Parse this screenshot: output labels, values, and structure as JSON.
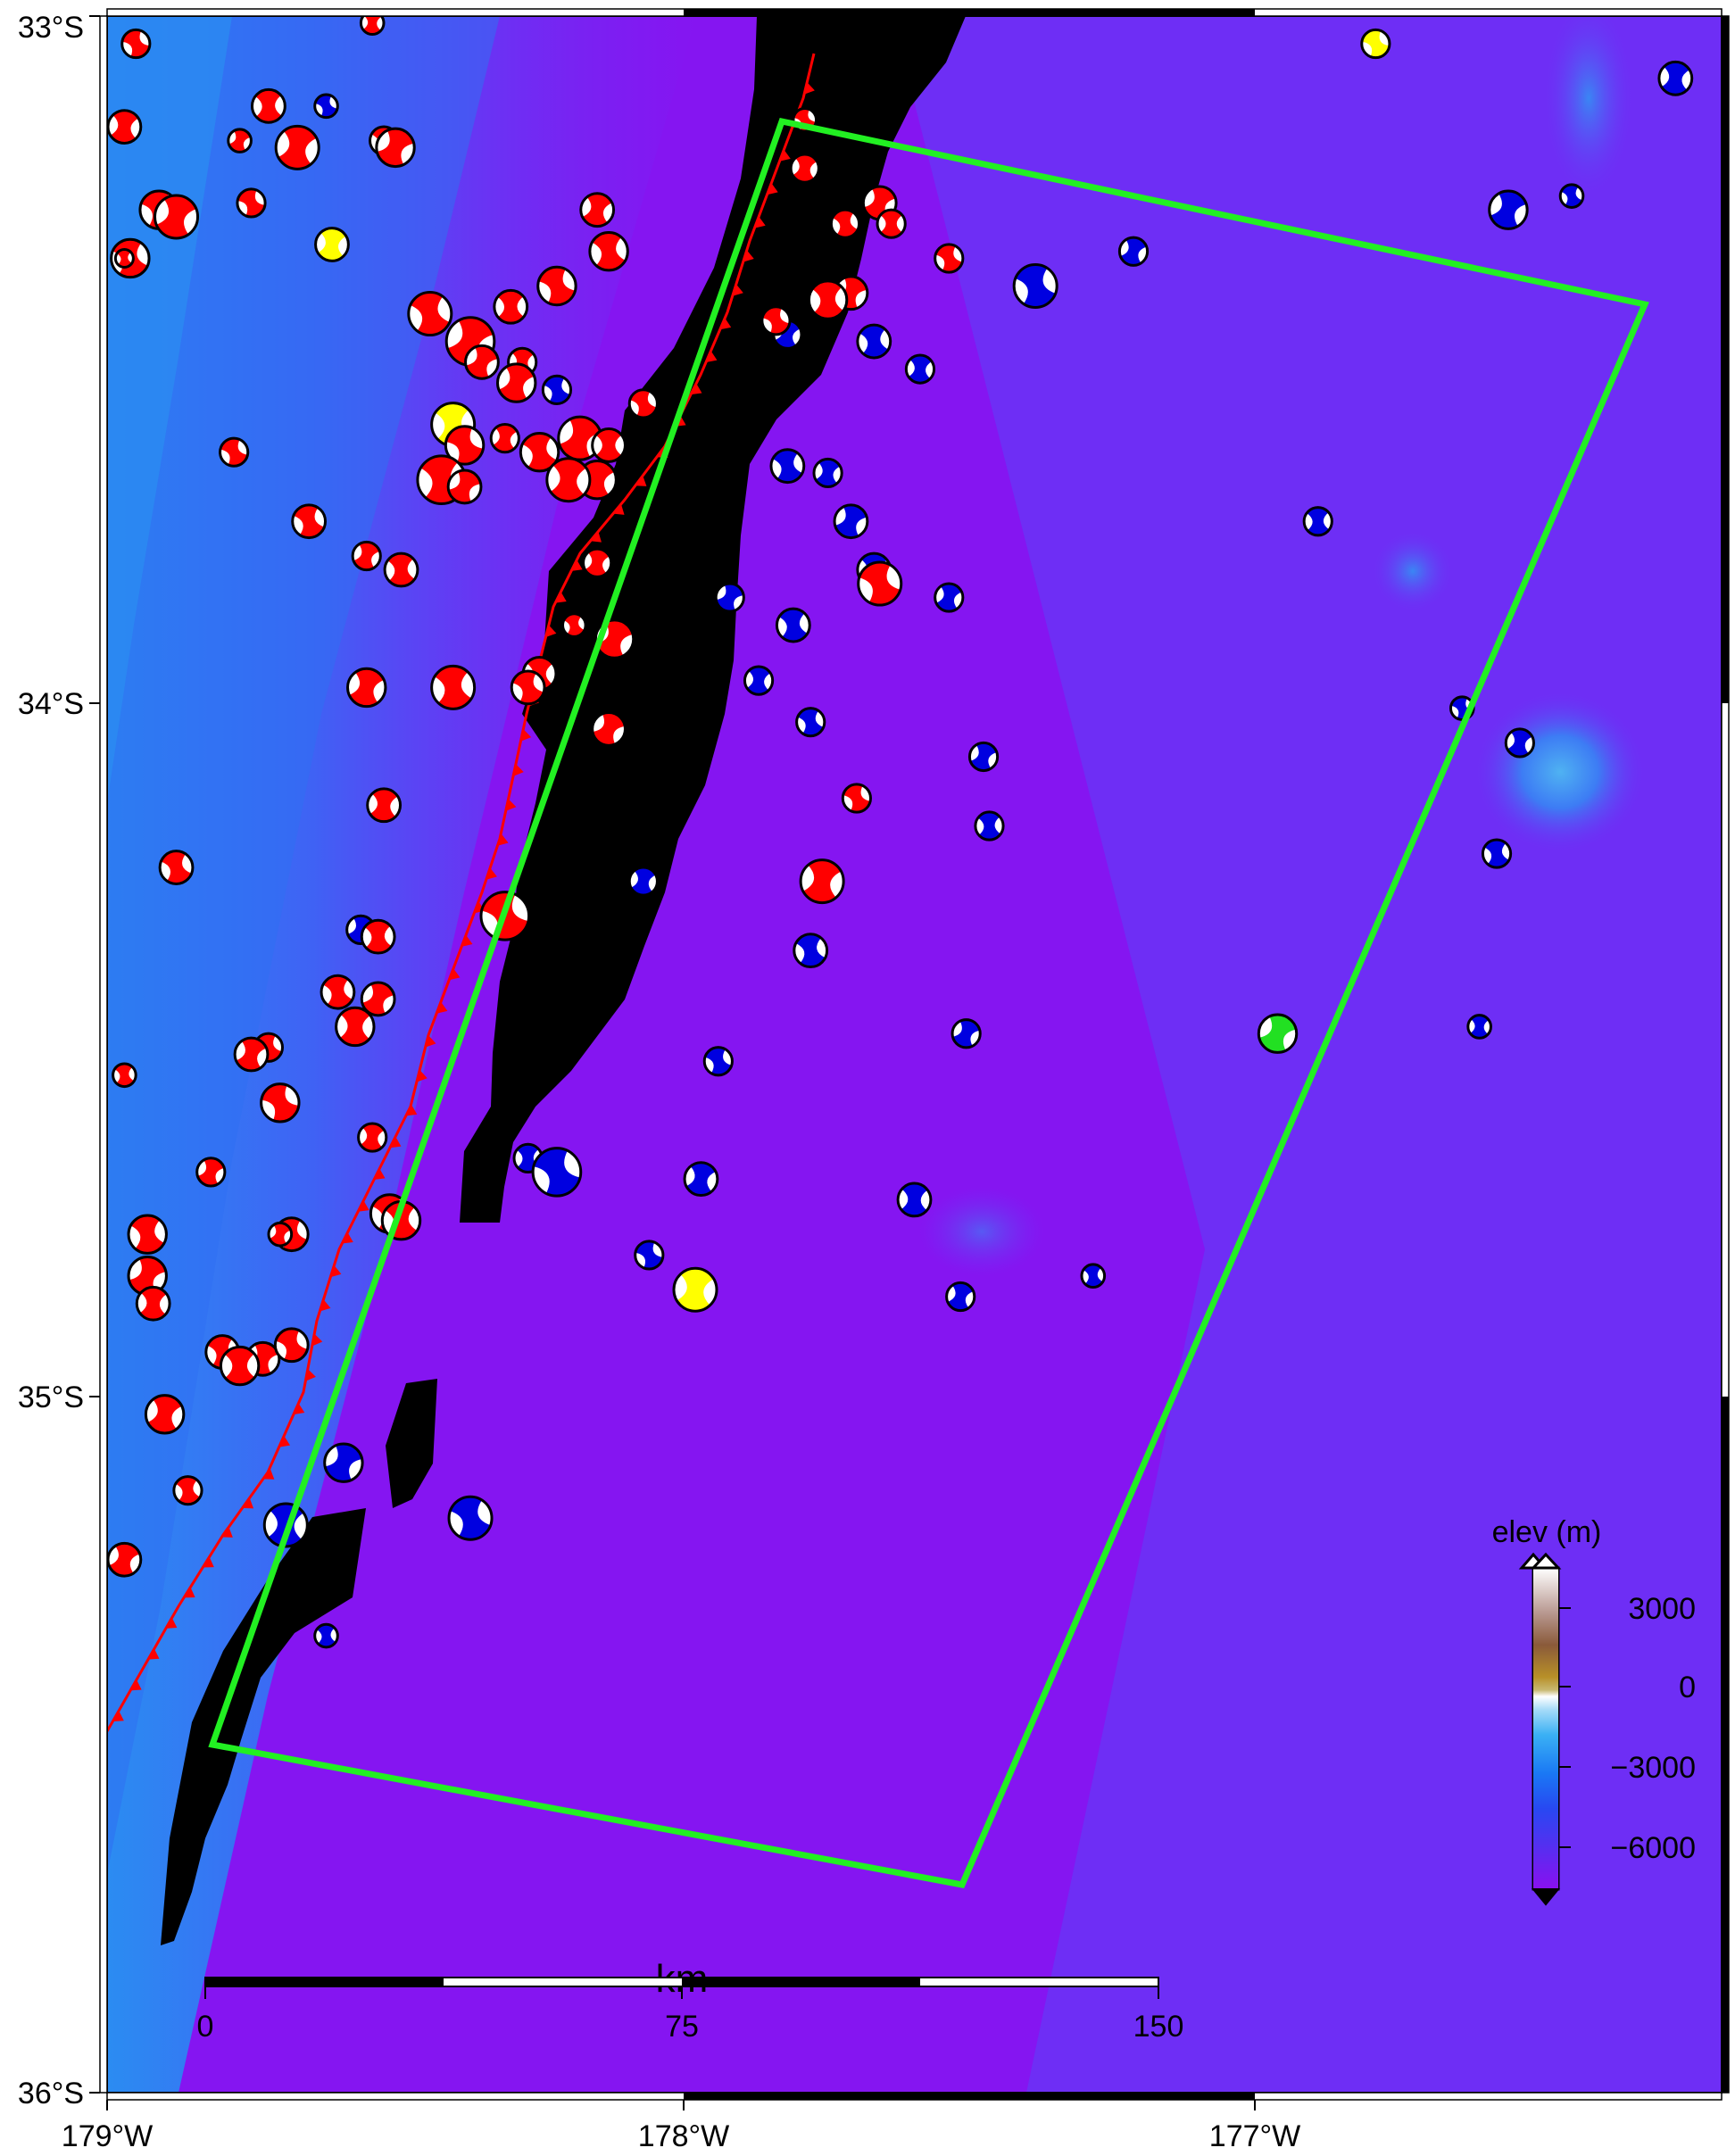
{
  "map": {
    "lat_labels": [
      "33°S",
      "34°S",
      "35°S",
      "36°S"
    ],
    "lon_labels": [
      "179°W",
      "178°W",
      "177°W"
    ],
    "colors": {
      "deep_ocean": "#8a10f0",
      "mid_ocean": "#6a33f6",
      "shallow": "#2b8cf2",
      "land_mask": "#000000",
      "trench_line": "#ff0000",
      "study_box": "#22f022"
    }
  },
  "scalebar": {
    "unit": "km",
    "labels": [
      "0",
      "75",
      "150"
    ]
  },
  "colorbar": {
    "title": "elev (m)",
    "labels": [
      "3000",
      "0",
      "−3000",
      "−6000"
    ]
  },
  "mechanisms": {
    "colors": {
      "red": "#ff0000",
      "blue": "#0000e0",
      "yellow": "#ffff00",
      "green": "#22e022"
    },
    "events": [
      {
        "lon": -178.95,
        "lat": -33.04,
        "color": "red",
        "mag": 5.2
      },
      {
        "lon": -178.97,
        "lat": -33.16,
        "color": "red",
        "mag": 5.3
      },
      {
        "lon": -178.96,
        "lat": -33.35,
        "color": "red",
        "mag": 5.4
      },
      {
        "lon": -178.77,
        "lat": -33.18,
        "color": "red",
        "mag": 5.1
      },
      {
        "lon": -178.72,
        "lat": -33.13,
        "color": "red",
        "mag": 5.3
      },
      {
        "lon": -178.62,
        "lat": -33.13,
        "color": "blue",
        "mag": 5.1
      },
      {
        "lon": -178.67,
        "lat": -33.19,
        "color": "red",
        "mag": 5.5
      },
      {
        "lon": -178.52,
        "lat": -33.18,
        "color": "red",
        "mag": 5.2
      },
      {
        "lon": -178.5,
        "lat": -33.19,
        "color": "red",
        "mag": 5.4
      },
      {
        "lon": -178.54,
        "lat": -33.01,
        "color": "red",
        "mag": 5.1
      },
      {
        "lon": -178.91,
        "lat": -33.28,
        "color": "red",
        "mag": 5.4
      },
      {
        "lon": -178.88,
        "lat": -33.29,
        "color": "red",
        "mag": 5.5
      },
      {
        "lon": -178.97,
        "lat": -33.35,
        "color": "red",
        "mag": 5.0
      },
      {
        "lon": -178.75,
        "lat": -33.27,
        "color": "red",
        "mag": 5.2
      },
      {
        "lon": -178.61,
        "lat": -33.33,
        "color": "yellow",
        "mag": 5.3
      },
      {
        "lon": -178.44,
        "lat": -33.43,
        "color": "red",
        "mag": 5.5
      },
      {
        "lon": -178.37,
        "lat": -33.47,
        "color": "red",
        "mag": 5.6
      },
      {
        "lon": -178.3,
        "lat": -33.42,
        "color": "red",
        "mag": 5.3
      },
      {
        "lon": -178.22,
        "lat": -33.39,
        "color": "red",
        "mag": 5.4
      },
      {
        "lon": -178.15,
        "lat": -33.28,
        "color": "red",
        "mag": 5.3
      },
      {
        "lon": -178.13,
        "lat": -33.34,
        "color": "red",
        "mag": 5.4
      },
      {
        "lon": -178.35,
        "lat": -33.5,
        "color": "red",
        "mag": 5.3
      },
      {
        "lon": -178.28,
        "lat": -33.5,
        "color": "red",
        "mag": 5.2
      },
      {
        "lon": -178.22,
        "lat": -33.54,
        "color": "blue",
        "mag": 5.2
      },
      {
        "lon": -178.29,
        "lat": -33.53,
        "color": "red",
        "mag": 5.4
      },
      {
        "lon": -178.4,
        "lat": -33.59,
        "color": "yellow",
        "mag": 5.5
      },
      {
        "lon": -178.38,
        "lat": -33.62,
        "color": "red",
        "mag": 5.4
      },
      {
        "lon": -178.31,
        "lat": -33.61,
        "color": "red",
        "mag": 5.2
      },
      {
        "lon": -178.25,
        "lat": -33.63,
        "color": "red",
        "mag": 5.4
      },
      {
        "lon": -178.18,
        "lat": -33.61,
        "color": "red",
        "mag": 5.5
      },
      {
        "lon": -178.13,
        "lat": -33.62,
        "color": "red",
        "mag": 5.3
      },
      {
        "lon": -178.07,
        "lat": -33.56,
        "color": "red",
        "mag": 5.2
      },
      {
        "lon": -178.15,
        "lat": -33.67,
        "color": "red",
        "mag": 5.4
      },
      {
        "lon": -178.42,
        "lat": -33.67,
        "color": "red",
        "mag": 5.6
      },
      {
        "lon": -178.38,
        "lat": -33.68,
        "color": "red",
        "mag": 5.3
      },
      {
        "lon": -178.2,
        "lat": -33.67,
        "color": "red",
        "mag": 5.5
      },
      {
        "lon": -178.65,
        "lat": -33.73,
        "color": "red",
        "mag": 5.3
      },
      {
        "lon": -178.55,
        "lat": -33.78,
        "color": "red",
        "mag": 5.2
      },
      {
        "lon": -178.49,
        "lat": -33.8,
        "color": "red",
        "mag": 5.3
      },
      {
        "lon": -178.78,
        "lat": -33.63,
        "color": "red",
        "mag": 5.2
      },
      {
        "lon": -178.15,
        "lat": -33.79,
        "color": "red",
        "mag": 5.2
      },
      {
        "lon": -178.19,
        "lat": -33.88,
        "color": "red",
        "mag": 5.1
      },
      {
        "lon": -178.12,
        "lat": -33.9,
        "color": "red",
        "mag": 5.4
      },
      {
        "lon": -178.25,
        "lat": -33.95,
        "color": "red",
        "mag": 5.3
      },
      {
        "lon": -178.27,
        "lat": -33.97,
        "color": "red",
        "mag": 5.3
      },
      {
        "lon": -178.55,
        "lat": -33.97,
        "color": "red",
        "mag": 5.4
      },
      {
        "lon": -178.4,
        "lat": -33.97,
        "color": "red",
        "mag": 5.5
      },
      {
        "lon": -178.13,
        "lat": -34.03,
        "color": "red",
        "mag": 5.3
      },
      {
        "lon": -178.52,
        "lat": -34.14,
        "color": "red",
        "mag": 5.3
      },
      {
        "lon": -178.88,
        "lat": -34.23,
        "color": "red",
        "mag": 5.3
      },
      {
        "lon": -178.56,
        "lat": -34.32,
        "color": "blue",
        "mag": 5.2
      },
      {
        "lon": -178.53,
        "lat": -34.33,
        "color": "red",
        "mag": 5.3
      },
      {
        "lon": -178.31,
        "lat": -34.3,
        "color": "red",
        "mag": 5.6
      },
      {
        "lon": -178.07,
        "lat": -34.25,
        "color": "blue",
        "mag": 5.2
      },
      {
        "lon": -178.6,
        "lat": -34.41,
        "color": "red",
        "mag": 5.3
      },
      {
        "lon": -178.53,
        "lat": -34.42,
        "color": "red",
        "mag": 5.3
      },
      {
        "lon": -178.57,
        "lat": -34.46,
        "color": "red",
        "mag": 5.4
      },
      {
        "lon": -178.72,
        "lat": -34.49,
        "color": "red",
        "mag": 5.2
      },
      {
        "lon": -178.75,
        "lat": -34.5,
        "color": "red",
        "mag": 5.3
      },
      {
        "lon": -178.97,
        "lat": -34.53,
        "color": "red",
        "mag": 5.1
      },
      {
        "lon": -178.7,
        "lat": -34.57,
        "color": "red",
        "mag": 5.4
      },
      {
        "lon": -178.54,
        "lat": -34.62,
        "color": "red",
        "mag": 5.2
      },
      {
        "lon": -178.51,
        "lat": -34.73,
        "color": "red",
        "mag": 5.4
      },
      {
        "lon": -178.82,
        "lat": -34.67,
        "color": "red",
        "mag": 5.2
      },
      {
        "lon": -178.27,
        "lat": -34.65,
        "color": "blue",
        "mag": 5.2
      },
      {
        "lon": -178.22,
        "lat": -34.67,
        "color": "blue",
        "mag": 5.6
      },
      {
        "lon": -177.97,
        "lat": -34.68,
        "color": "blue",
        "mag": 5.3
      },
      {
        "lon": -178.93,
        "lat": -34.76,
        "color": "red",
        "mag": 5.4
      },
      {
        "lon": -178.93,
        "lat": -34.82,
        "color": "red",
        "mag": 5.4
      },
      {
        "lon": -178.92,
        "lat": -34.86,
        "color": "red",
        "mag": 5.3
      },
      {
        "lon": -178.68,
        "lat": -34.76,
        "color": "red",
        "mag": 5.3
      },
      {
        "lon": -178.7,
        "lat": -34.76,
        "color": "red",
        "mag": 5.1
      },
      {
        "lon": -178.49,
        "lat": -34.74,
        "color": "red",
        "mag": 5.4
      },
      {
        "lon": -178.06,
        "lat": -34.79,
        "color": "blue",
        "mag": 5.2
      },
      {
        "lon": -177.98,
        "lat": -34.84,
        "color": "yellow",
        "mag": 5.5
      },
      {
        "lon": -178.8,
        "lat": -34.93,
        "color": "red",
        "mag": 5.3
      },
      {
        "lon": -178.73,
        "lat": -34.94,
        "color": "red",
        "mag": 5.3
      },
      {
        "lon": -178.77,
        "lat": -34.95,
        "color": "red",
        "mag": 5.4
      },
      {
        "lon": -178.68,
        "lat": -34.92,
        "color": "red",
        "mag": 5.3
      },
      {
        "lon": -178.9,
        "lat": -35.02,
        "color": "red",
        "mag": 5.4
      },
      {
        "lon": -178.86,
        "lat": -35.13,
        "color": "red",
        "mag": 5.2
      },
      {
        "lon": -178.59,
        "lat": -35.09,
        "color": "blue",
        "mag": 5.4
      },
      {
        "lon": -178.69,
        "lat": -35.18,
        "color": "blue",
        "mag": 5.5
      },
      {
        "lon": -178.37,
        "lat": -35.17,
        "color": "blue",
        "mag": 5.5
      },
      {
        "lon": -178.97,
        "lat": -35.23,
        "color": "red",
        "mag": 5.3
      },
      {
        "lon": -178.62,
        "lat": -35.34,
        "color": "blue",
        "mag": 5.1
      },
      {
        "lon": -177.79,
        "lat": -33.15,
        "color": "red",
        "mag": 5.1
      },
      {
        "lon": -177.79,
        "lat": -33.22,
        "color": "red",
        "mag": 5.2
      },
      {
        "lon": -177.72,
        "lat": -33.3,
        "color": "red",
        "mag": 5.2
      },
      {
        "lon": -177.66,
        "lat": -33.27,
        "color": "red",
        "mag": 5.3
      },
      {
        "lon": -177.64,
        "lat": -33.3,
        "color": "red",
        "mag": 5.2
      },
      {
        "lon": -177.54,
        "lat": -33.35,
        "color": "red",
        "mag": 5.2
      },
      {
        "lon": -177.82,
        "lat": -33.46,
        "color": "blue",
        "mag": 5.2
      },
      {
        "lon": -177.67,
        "lat": -33.47,
        "color": "blue",
        "mag": 5.3
      },
      {
        "lon": -177.71,
        "lat": -33.4,
        "color": "red",
        "mag": 5.3
      },
      {
        "lon": -177.59,
        "lat": -33.51,
        "color": "blue",
        "mag": 5.2
      },
      {
        "lon": -177.39,
        "lat": -33.39,
        "color": "blue",
        "mag": 5.5
      },
      {
        "lon": -177.22,
        "lat": -33.34,
        "color": "blue",
        "mag": 5.2
      },
      {
        "lon": -177.75,
        "lat": -33.41,
        "color": "red",
        "mag": 5.4
      },
      {
        "lon": -177.84,
        "lat": -33.44,
        "color": "red",
        "mag": 5.2
      },
      {
        "lon": -177.75,
        "lat": -33.66,
        "color": "blue",
        "mag": 5.2
      },
      {
        "lon": -177.82,
        "lat": -33.65,
        "color": "blue",
        "mag": 5.3
      },
      {
        "lon": -177.71,
        "lat": -33.73,
        "color": "blue",
        "mag": 5.3
      },
      {
        "lon": -177.67,
        "lat": -33.8,
        "color": "blue",
        "mag": 5.3
      },
      {
        "lon": -177.66,
        "lat": -33.82,
        "color": "red",
        "mag": 5.5
      },
      {
        "lon": -177.54,
        "lat": -33.84,
        "color": "blue",
        "mag": 5.2
      },
      {
        "lon": -177.81,
        "lat": -33.88,
        "color": "blue",
        "mag": 5.3
      },
      {
        "lon": -177.92,
        "lat": -33.84,
        "color": "blue",
        "mag": 5.2
      },
      {
        "lon": -177.87,
        "lat": -33.96,
        "color": "blue",
        "mag": 5.2
      },
      {
        "lon": -177.78,
        "lat": -34.02,
        "color": "blue",
        "mag": 5.2
      },
      {
        "lon": -177.48,
        "lat": -34.07,
        "color": "blue",
        "mag": 5.2
      },
      {
        "lon": -177.47,
        "lat": -34.17,
        "color": "blue",
        "mag": 5.2
      },
      {
        "lon": -177.7,
        "lat": -34.13,
        "color": "red",
        "mag": 5.2
      },
      {
        "lon": -177.76,
        "lat": -34.25,
        "color": "red",
        "mag": 5.5
      },
      {
        "lon": -177.78,
        "lat": -34.35,
        "color": "blue",
        "mag": 5.3
      },
      {
        "lon": -177.51,
        "lat": -34.47,
        "color": "blue",
        "mag": 5.2
      },
      {
        "lon": -177.6,
        "lat": -34.71,
        "color": "blue",
        "mag": 5.3
      },
      {
        "lon": -177.94,
        "lat": -34.51,
        "color": "blue",
        "mag": 5.2
      },
      {
        "lon": -177.52,
        "lat": -34.85,
        "color": "blue",
        "mag": 5.2
      },
      {
        "lon": -177.29,
        "lat": -34.82,
        "color": "blue",
        "mag": 5.1
      },
      {
        "lon": -176.8,
        "lat": -33.04,
        "color": "yellow",
        "mag": 5.2
      },
      {
        "lon": -176.28,
        "lat": -33.09,
        "color": "blue",
        "mag": 5.3
      },
      {
        "lon": -176.46,
        "lat": -33.26,
        "color": "blue",
        "mag": 5.1
      },
      {
        "lon": -176.57,
        "lat": -33.28,
        "color": "blue",
        "mag": 5.4
      },
      {
        "lon": -176.9,
        "lat": -33.73,
        "color": "blue",
        "mag": 5.2
      },
      {
        "lon": -176.65,
        "lat": -34.0,
        "color": "blue",
        "mag": 5.1
      },
      {
        "lon": -176.55,
        "lat": -34.05,
        "color": "blue",
        "mag": 5.2
      },
      {
        "lon": -176.59,
        "lat": -34.21,
        "color": "blue",
        "mag": 5.2
      },
      {
        "lon": -176.97,
        "lat": -34.47,
        "color": "green",
        "mag": 5.4
      },
      {
        "lon": -176.62,
        "lat": -34.46,
        "color": "blue",
        "mag": 5.1
      }
    ]
  }
}
